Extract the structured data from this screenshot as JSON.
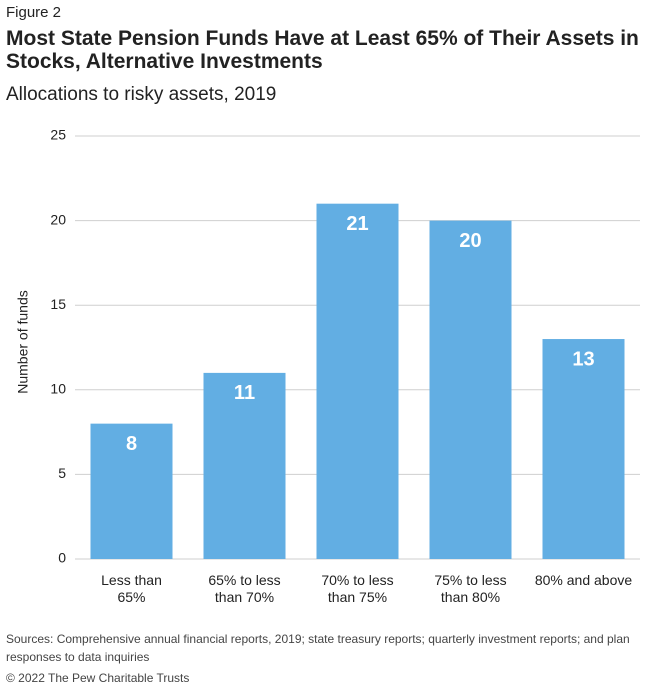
{
  "chart_data": {
    "type": "bar",
    "figure_label": "Figure 2",
    "title": "Most State Pension Funds Have at Least 65% of Their Assets in Stocks, Alternative Investments",
    "subtitle": "Allocations to risky assets, 2019",
    "y_label": "Number of funds",
    "categories": [
      "Less than\n65%",
      "65% to less\nthan 70%",
      "70% to less\nthan 75%",
      "75% to less\nthan 80%",
      "80% and above"
    ],
    "values": [
      8,
      11,
      21,
      20,
      13
    ],
    "color": "#62aee3",
    "ylim": [
      0,
      25
    ],
    "yticks": [
      0,
      5,
      10,
      15,
      20,
      25
    ],
    "grid": true,
    "source": "Sources: Comprehensive annual financial reports, 2019; state treasury reports; quarterly investment reports; and plan responses to data inquiries",
    "copyright": "© 2022 The Pew Charitable Trusts"
  }
}
